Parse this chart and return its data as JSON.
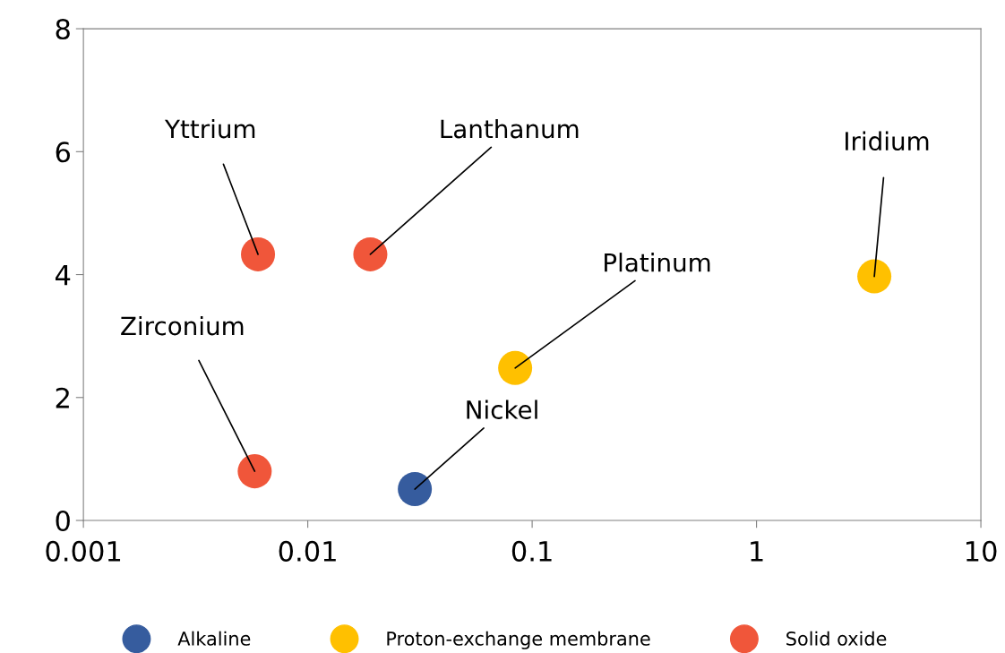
{
  "chart_data": {
    "type": "scatter",
    "log": "x",
    "grid": false,
    "legend": "bottom",
    "marker": "circle",
    "xlim": [
      0.001,
      10
    ],
    "xticks": [
      {
        "value": 0.001,
        "label": "0.001"
      },
      {
        "value": 0.01,
        "label": "0.01"
      },
      {
        "value": 0.1,
        "label": "0.1"
      },
      {
        "value": 1,
        "label": "1"
      },
      {
        "value": 10,
        "label": "10"
      }
    ],
    "ylim": [
      0,
      8
    ],
    "yticks": [
      0,
      2,
      4,
      6,
      8
    ],
    "series": [
      {
        "name": "Alkaline",
        "color": "#365c9e",
        "x": [
          0.03
        ],
        "values": [
          0.51
        ]
      },
      {
        "name": "Proton-exchange membrane",
        "color": "#ffc000",
        "x": [
          0.084,
          3.35
        ],
        "values": [
          2.48,
          3.97
        ]
      },
      {
        "name": "Solid oxide",
        "color": "#f0563a",
        "x": [
          0.006,
          0.019,
          0.0058
        ],
        "values": [
          4.33,
          4.33,
          0.8
        ]
      }
    ],
    "annotations": [
      {
        "text": "Nickel",
        "x": 0.03,
        "y": 0.51
      },
      {
        "text": "Platinum",
        "x": 0.084,
        "y": 2.48
      },
      {
        "text": "Iridium",
        "x": 3.35,
        "y": 3.97
      },
      {
        "text": "Yttrium",
        "x": 0.006,
        "y": 4.33
      },
      {
        "text": "Lanthanum",
        "x": 0.019,
        "y": 4.33
      },
      {
        "text": "Zirconium",
        "x": 0.0058,
        "y": 0.8
      }
    ]
  }
}
